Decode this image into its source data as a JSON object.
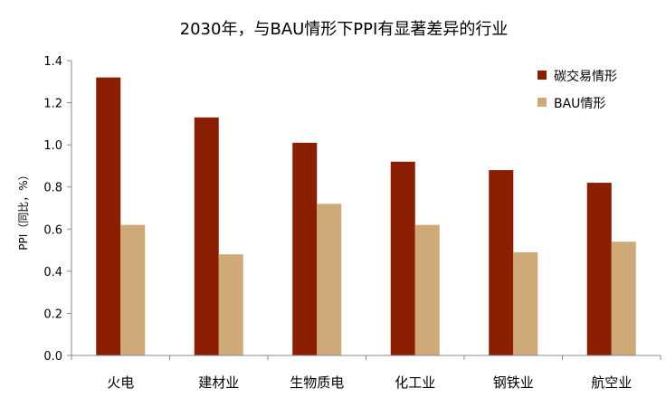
{
  "chart_data": {
    "type": "bar",
    "title": "2030年，与BAU情形下PPI有显著差异的行业",
    "ylabel": "PPI（同比，%）",
    "xlabel": "",
    "categories": [
      "火电",
      "建材业",
      "生物质电",
      "化工业",
      "钢铁业",
      "航空业"
    ],
    "series": [
      {
        "name": "碳交易情形",
        "color": "#8B1E00",
        "values": [
          1.32,
          1.13,
          1.01,
          0.92,
          0.88,
          0.82
        ]
      },
      {
        "name": "BAU情形",
        "color": "#CDAA78",
        "values": [
          0.62,
          0.48,
          0.72,
          0.62,
          0.49,
          0.54
        ]
      }
    ],
    "ylim": [
      0,
      1.4
    ],
    "yticks": [
      "0.0",
      "0.2",
      "0.4",
      "0.6",
      "0.8",
      "1.0",
      "1.2",
      "1.4"
    ],
    "grid": false,
    "legend_position": "top-right"
  }
}
